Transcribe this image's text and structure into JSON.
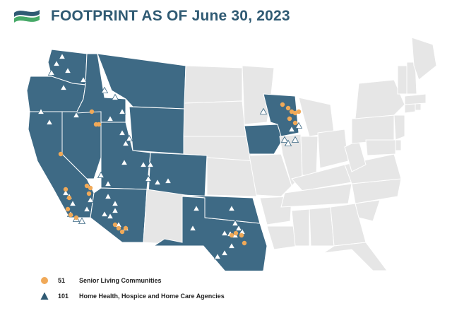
{
  "header": {
    "title": "FOOTPRINT AS OF June 30, 2023"
  },
  "colors": {
    "title": "#2f5a73",
    "footprint_state": "#3e6a85",
    "other_state": "#e6e6e6",
    "border": "#ffffff",
    "senior_living_marker": "#f0a958",
    "agency_marker": "#ffffff",
    "logo_blue": "#2f5a73",
    "logo_green": "#47a968"
  },
  "legend": {
    "items": [
      {
        "count": "51",
        "label": "Senior Living Communities",
        "icon": "orange-circle"
      },
      {
        "count": "101",
        "label": "Home Health, Hospice and Home Care Agencies",
        "icon": "navy-triangle"
      }
    ]
  },
  "map": {
    "footprint_states": [
      "WA",
      "OR",
      "CA",
      "NV",
      "ID",
      "MT",
      "WY",
      "UT",
      "CO",
      "AZ",
      "TX",
      "OK",
      "IA",
      "WI"
    ],
    "other_states": [
      "ND",
      "SD",
      "NE",
      "KS",
      "NM",
      "MN",
      "MO",
      "AR",
      "LA",
      "IL",
      "IN",
      "MI",
      "OH",
      "KY",
      "TN",
      "MS",
      "AL",
      "GA",
      "FL",
      "SC",
      "NC",
      "VA",
      "WV",
      "PA",
      "NY",
      "NJ",
      "DE",
      "MD",
      "CT",
      "RI",
      "MA",
      "VT",
      "NH",
      "ME"
    ]
  }
}
